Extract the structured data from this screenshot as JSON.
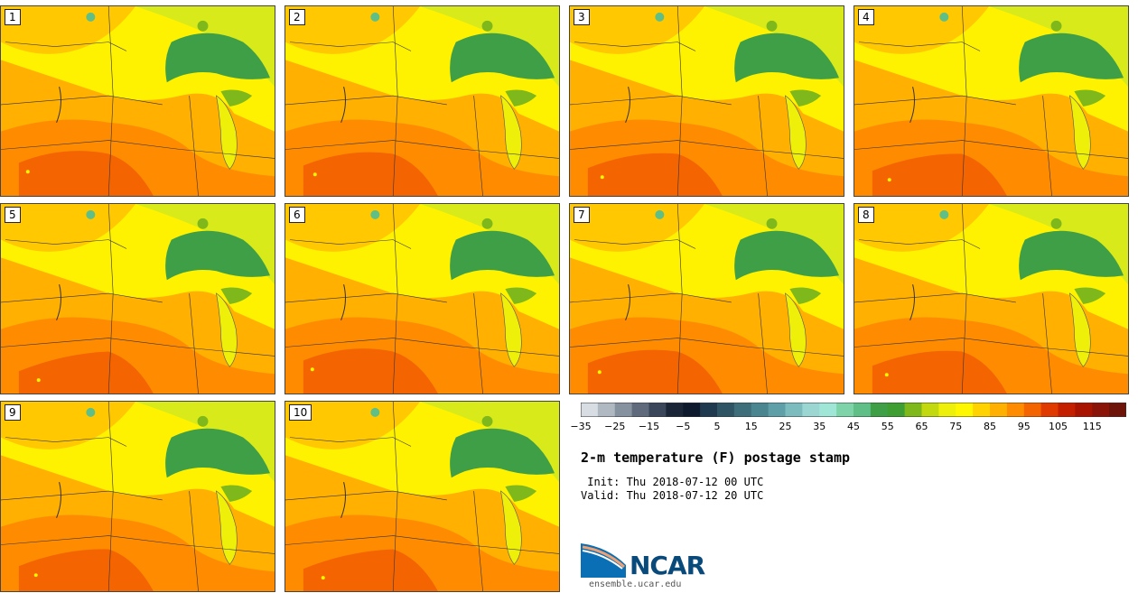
{
  "panels": [
    {
      "label": "1"
    },
    {
      "label": "2"
    },
    {
      "label": "3"
    },
    {
      "label": "4"
    },
    {
      "label": "5"
    },
    {
      "label": "6"
    },
    {
      "label": "7"
    },
    {
      "label": "8"
    },
    {
      "label": "9"
    },
    {
      "label": "10"
    }
  ],
  "colorbar": {
    "colors": [
      "#d7dde3",
      "#b0b8c1",
      "#8792a0",
      "#5f6b7c",
      "#3a465a",
      "#1b2538",
      "#0d1a2e",
      "#1f3a4f",
      "#2f5565",
      "#3d6e7a",
      "#4a8590",
      "#5fa0a8",
      "#7cbcbf",
      "#9bd6d2",
      "#9fe6d6",
      "#7fd3a8",
      "#5fbf86",
      "#3f9f47",
      "#3f9e32",
      "#7fb81a",
      "#c2d90f",
      "#eef00a",
      "#fff700",
      "#ffd200",
      "#ffb000",
      "#ff8c00",
      "#f46400",
      "#e03a00",
      "#c42000",
      "#a81400",
      "#8a1408",
      "#6e1408"
    ],
    "ticks": [
      "−35",
      "−25",
      "−15",
      "−5",
      "5",
      "15",
      "25",
      "35",
      "45",
      "55",
      "65",
      "75",
      "85",
      "95",
      "105",
      "115"
    ]
  },
  "title": "2-m temperature (F) postage stamp",
  "init_label": " Init: Thu 2018-07-12 00 UTC",
  "valid_label": "Valid: Thu 2018-07-12 20 UTC",
  "logo_text": "NCAR",
  "url": "ensemble.ucar.edu"
}
